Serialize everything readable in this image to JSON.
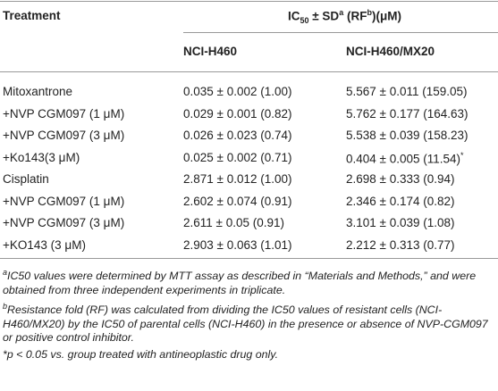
{
  "table": {
    "header": {
      "treatment": "Treatment",
      "group": [
        "IC",
        "50",
        " ± SD",
        "a",
        " (RF",
        "b",
        ")(μM)"
      ],
      "columns": [
        "NCI-H460",
        "NCI-H460/MX20"
      ]
    },
    "rows": [
      [
        "Mitoxantrone",
        "0.035 ± 0.002 (1.00)",
        "5.567 ± 0.011 (159.05)"
      ],
      [
        "+NVP CGM097 (1 μM)",
        "0.029 ± 0.001 (0.82)",
        "5.762 ± 0.177 (164.63)"
      ],
      [
        "+NVP CGM097 (3 μM)",
        "0.026 ± 0.023 (0.74)",
        "5.538 ± 0.039 (158.23)"
      ],
      [
        "+Ko143(3 μM)",
        "0.025 ± 0.002 (0.71)",
        [
          "0.404 ± 0.005 (11.54)",
          "*"
        ]
      ],
      [
        "Cisplatin",
        "2.871 ± 0.012 (1.00)",
        "2.698 ± 0.333 (0.94)"
      ],
      [
        "+NVP CGM097 (1 μM)",
        "2.602 ± 0.074 (0.91)",
        "2.346 ± 0.174 (0.82)"
      ],
      [
        "+NVP CGM097 (3 μM)",
        "2.611 ± 0.05 (0.91)",
        "3.101 ± 0.039 (1.08)"
      ],
      [
        "+KO143 (3 μM)",
        "2.903 ± 0.063 (1.01)",
        "2.212 ± 0.313 (0.77)"
      ]
    ]
  },
  "footnotes": [
    [
      "a",
      "IC50 values were determined by MTT assay as described in “Materials and Methods,” and were obtained from three independent experiments in triplicate."
    ],
    [
      "b",
      "Resistance fold (RF) was calculated from dividing the IC50 values of resistant cells (NCI-H460/MX20) by the IC50 of parental cells (NCI-H460) in the presence or absence of NVP-CGM097 or positive control inhibitor."
    ],
    [
      "*",
      "p < 0.05 vs. group treated with antineoplastic drug only."
    ]
  ]
}
